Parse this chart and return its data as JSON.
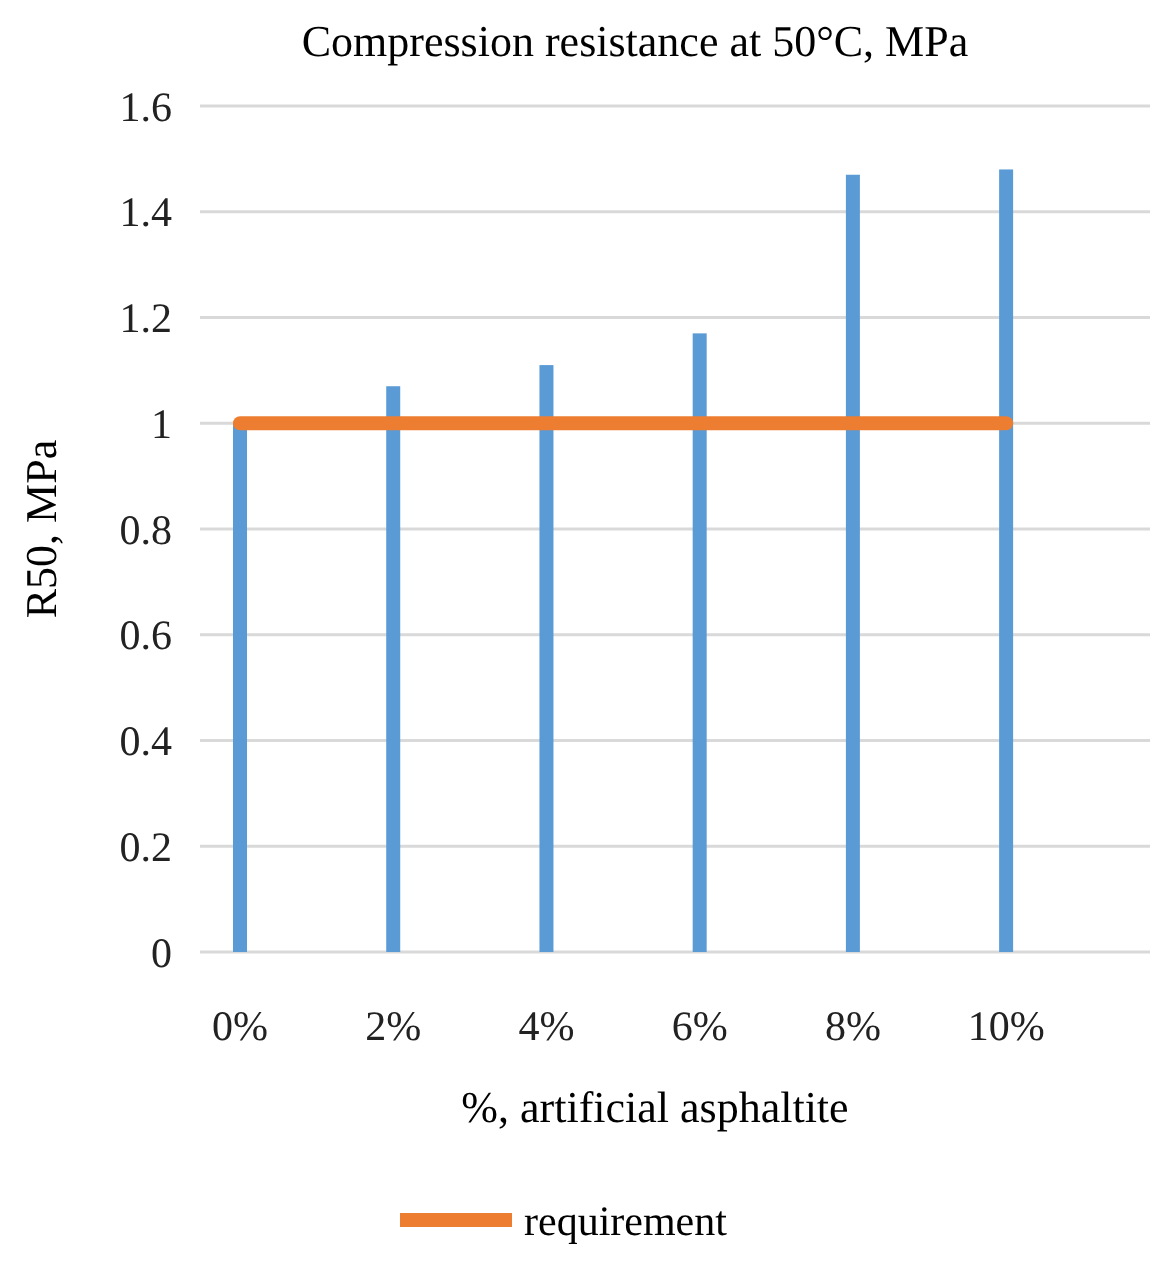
{
  "chart_data": {
    "type": "bar",
    "title": "Compression resistance at 50°C, MPa",
    "xlabel": "%, artificial asphaltite",
    "ylabel": "R50, MPa",
    "categories": [
      "0%",
      "2%",
      "4%",
      "6%",
      "8%",
      "10%"
    ],
    "series": [
      {
        "color": "#5b9bd5",
        "values": [
          1.0,
          1.07,
          1.11,
          1.17,
          1.47,
          1.48
        ]
      },
      {
        "type": "line",
        "name": "requirement",
        "color": "#ed7d31",
        "values": [
          1,
          1,
          1,
          1,
          1,
          1
        ]
      }
    ],
    "ylim": [
      0,
      1.6
    ],
    "yticks": [
      0,
      0.2,
      0.4,
      0.6,
      0.8,
      1,
      1.2,
      1.4,
      1.6
    ],
    "grid": "y",
    "legend": "bottom"
  }
}
